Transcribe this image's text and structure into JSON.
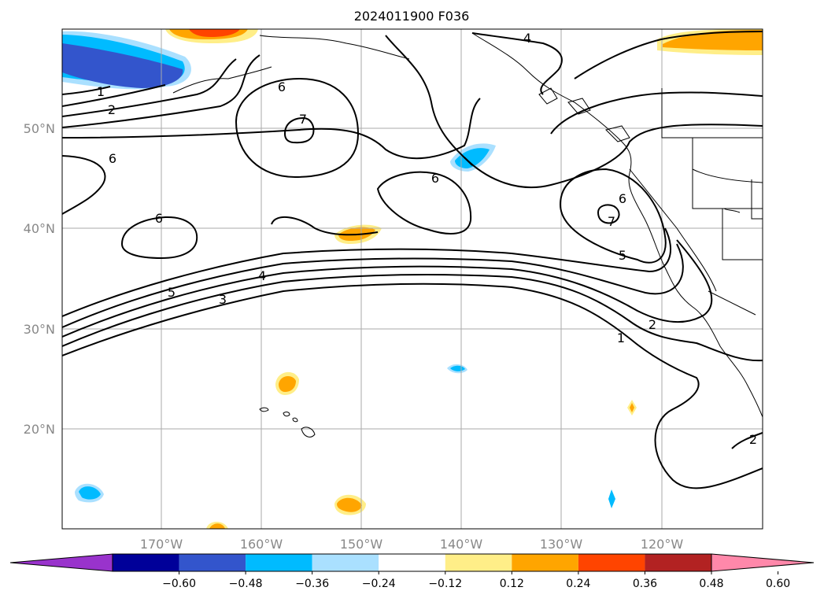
{
  "title": "2024011900 F036",
  "lat_labels": [
    "50°N",
    "40°N",
    "30°N",
    "20°N"
  ],
  "lon_labels": [
    "170°W",
    "160°W",
    "150°W",
    "140°W",
    "130°W",
    "120°W"
  ],
  "colorbar": {
    "ticks": [
      "−0.60",
      "−0.48",
      "−0.36",
      "−0.24",
      "−0.12",
      "0.12",
      "0.24",
      "0.36",
      "0.48",
      "0.60"
    ],
    "colors": [
      "#9933cc",
      "#000099",
      "#3355cc",
      "#00bbff",
      "#aae0ff",
      "#ffffff",
      "#ffee88",
      "#ffa500",
      "#ff4400",
      "#b22222",
      "#ff88aa"
    ]
  },
  "contour_labels": [
    "1",
    "2",
    "6",
    "7",
    "6",
    "6",
    "6",
    "4",
    "6",
    "7",
    "5",
    "5",
    "4",
    "3",
    "2",
    "1",
    "2"
  ]
}
